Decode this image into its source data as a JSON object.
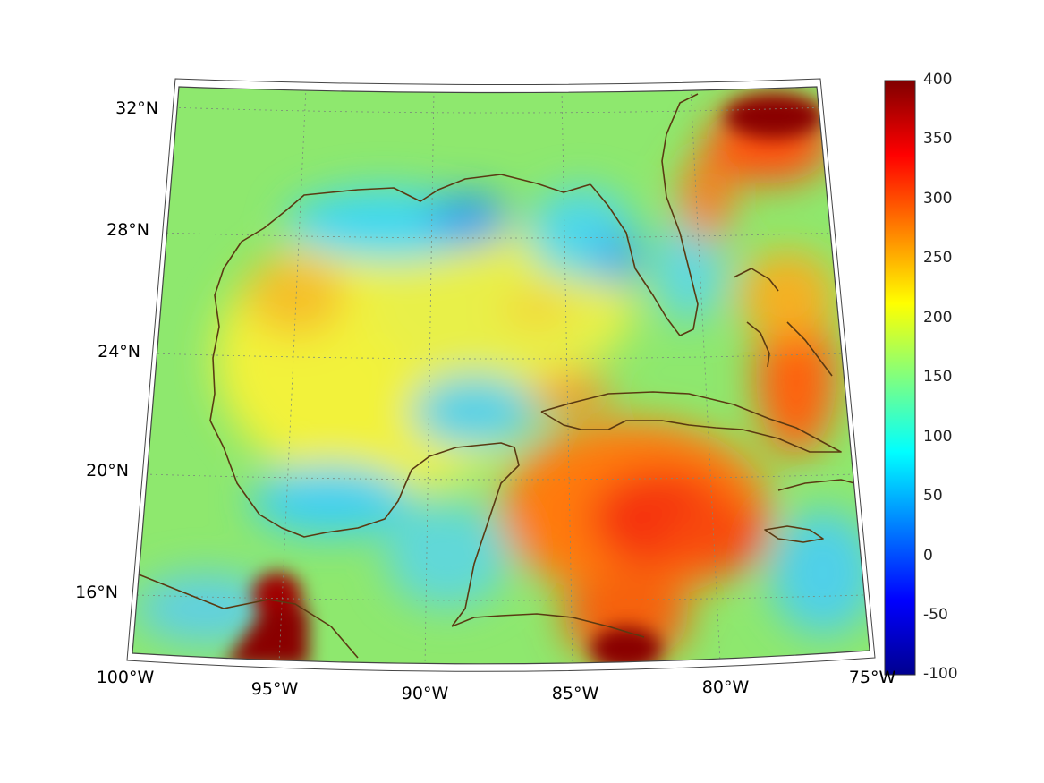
{
  "map": {
    "projection": "conic",
    "extent": {
      "lon": [
        -100,
        -75
      ],
      "lat": [
        14,
        32.5
      ]
    },
    "grid_lines": "dotted",
    "coastline_color": "#5a3a12",
    "lat_ticks": [
      "32°N",
      "28°N",
      "24°N",
      "20°N",
      "16°N"
    ],
    "lon_ticks": [
      "100°W",
      "95°W",
      "90°W",
      "85°W",
      "80°W",
      "75°W"
    ]
  },
  "colorbar": {
    "colormap": "jet",
    "min": -100,
    "max": 400,
    "labels": [
      "400",
      "350",
      "300",
      "250",
      "200",
      "150",
      "100",
      "50",
      "0",
      "-50",
      "-100"
    ]
  }
}
